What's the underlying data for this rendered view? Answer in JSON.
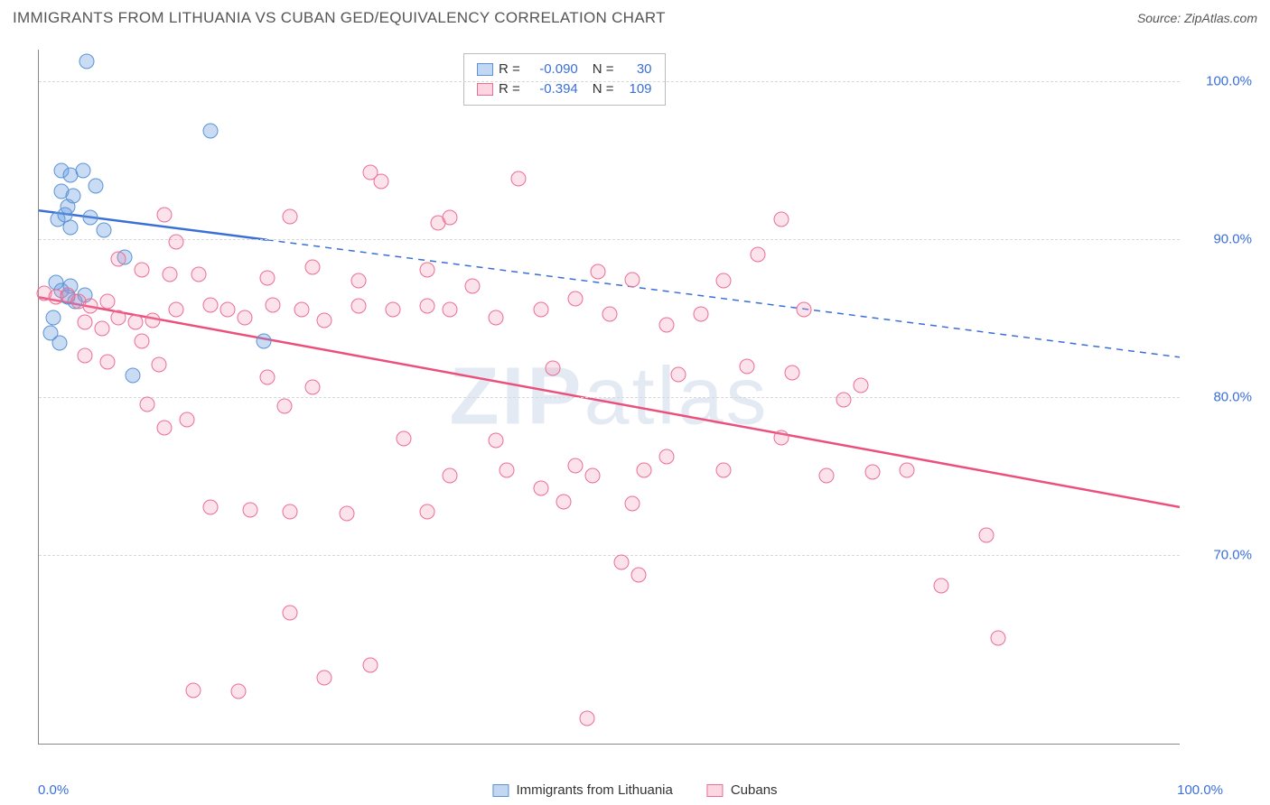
{
  "title": "IMMIGRANTS FROM LITHUANIA VS CUBAN GED/EQUIVALENCY CORRELATION CHART",
  "source_label": "Source: ",
  "source_value": "ZipAtlas.com",
  "ylabel": "GED/Equivalency",
  "watermark_light": "ZIP",
  "watermark_bold": "atlas",
  "chart": {
    "type": "scatter",
    "xlim": [
      0,
      100
    ],
    "ylim": [
      58,
      102
    ],
    "ytick_labels": [
      "70.0%",
      "80.0%",
      "90.0%",
      "100.0%"
    ],
    "ytick_values": [
      70,
      80,
      90,
      100
    ],
    "xtick_labels": [
      "0.0%",
      "100.0%"
    ],
    "xtick_values": [
      0,
      100
    ],
    "grid_color": "#d8d8d8",
    "background": "#ffffff",
    "series": [
      {
        "name": "Immigrants from Lithuania",
        "color_fill": "rgba(99,155,223,0.35)",
        "color_stroke": "#5b93d6",
        "marker": "circle",
        "marker_size": 17,
        "R": "-0.090",
        "N": "30",
        "trend": {
          "y0": 91.8,
          "y1": 82.5,
          "solid_until_x": 20,
          "stroke_width": 2.5,
          "color": "#3a6fd8"
        },
        "points": [
          [
            4.2,
            101.2
          ],
          [
            2.0,
            94.3
          ],
          [
            2.8,
            94.0
          ],
          [
            3.9,
            94.3
          ],
          [
            5.0,
            93.3
          ],
          [
            2.0,
            93.0
          ],
          [
            2.5,
            92.0
          ],
          [
            3.0,
            92.7
          ],
          [
            1.7,
            91.2
          ],
          [
            2.3,
            91.5
          ],
          [
            2.8,
            90.7
          ],
          [
            4.5,
            91.3
          ],
          [
            5.7,
            90.5
          ],
          [
            15.0,
            96.8
          ],
          [
            1.5,
            87.2
          ],
          [
            2.8,
            87.0
          ],
          [
            2.0,
            86.7
          ],
          [
            4.0,
            86.4
          ],
          [
            7.5,
            88.8
          ],
          [
            1.3,
            85.0
          ],
          [
            2.5,
            86.3
          ],
          [
            3.2,
            86.0
          ],
          [
            1.0,
            84.0
          ],
          [
            1.8,
            83.4
          ],
          [
            8.2,
            81.3
          ],
          [
            19.7,
            83.5
          ]
        ]
      },
      {
        "name": "Cubans",
        "color_fill": "rgba(245,140,170,0.25)",
        "color_stroke": "#eb6e94",
        "marker": "circle",
        "marker_size": 17,
        "R": "-0.394",
        "N": "109",
        "trend": {
          "y0": 86.3,
          "y1": 73.0,
          "solid_until_x": 100,
          "stroke_width": 2.5,
          "color": "#eb4f7c"
        },
        "points": [
          [
            29.0,
            94.2
          ],
          [
            30.0,
            93.6
          ],
          [
            42.0,
            93.8
          ],
          [
            11.0,
            91.5
          ],
          [
            12.0,
            89.8
          ],
          [
            22.0,
            91.4
          ],
          [
            35.0,
            91.0
          ],
          [
            36.0,
            91.3
          ],
          [
            65.0,
            91.2
          ],
          [
            7.0,
            88.7
          ],
          [
            9.0,
            88.0
          ],
          [
            11.5,
            87.7
          ],
          [
            14.0,
            87.7
          ],
          [
            20.0,
            87.5
          ],
          [
            24.0,
            88.2
          ],
          [
            28.0,
            87.3
          ],
          [
            34.0,
            88.0
          ],
          [
            38.0,
            87.0
          ],
          [
            49.0,
            87.9
          ],
          [
            52.0,
            87.4
          ],
          [
            60.0,
            87.3
          ],
          [
            63.0,
            89.0
          ],
          [
            0.5,
            86.5
          ],
          [
            1.5,
            86.3
          ],
          [
            2.5,
            86.4
          ],
          [
            3.5,
            86.0
          ],
          [
            4.5,
            85.7
          ],
          [
            6.0,
            86.0
          ],
          [
            4.0,
            84.7
          ],
          [
            5.5,
            84.3
          ],
          [
            7.0,
            85.0
          ],
          [
            8.5,
            84.7
          ],
          [
            10.0,
            84.8
          ],
          [
            9.0,
            83.5
          ],
          [
            12.0,
            85.5
          ],
          [
            15.0,
            85.8
          ],
          [
            16.5,
            85.5
          ],
          [
            18.0,
            85.0
          ],
          [
            20.5,
            85.8
          ],
          [
            23.0,
            85.5
          ],
          [
            25.0,
            84.8
          ],
          [
            28.0,
            85.7
          ],
          [
            31.0,
            85.5
          ],
          [
            34.0,
            85.7
          ],
          [
            36.0,
            85.5
          ],
          [
            40.0,
            85.0
          ],
          [
            44.0,
            85.5
          ],
          [
            47.0,
            86.2
          ],
          [
            50.0,
            85.2
          ],
          [
            55.0,
            84.5
          ],
          [
            58.0,
            85.2
          ],
          [
            67.0,
            85.5
          ],
          [
            4.0,
            82.6
          ],
          [
            6.0,
            82.2
          ],
          [
            10.5,
            82.0
          ],
          [
            20.0,
            81.2
          ],
          [
            24.0,
            80.6
          ],
          [
            45.0,
            81.8
          ],
          [
            56.0,
            81.4
          ],
          [
            62.0,
            81.9
          ],
          [
            66.0,
            81.5
          ],
          [
            72.0,
            80.7
          ],
          [
            9.5,
            79.5
          ],
          [
            11.0,
            78.0
          ],
          [
            13.0,
            78.5
          ],
          [
            21.5,
            79.4
          ],
          [
            70.5,
            79.8
          ],
          [
            32.0,
            77.3
          ],
          [
            40.0,
            77.2
          ],
          [
            65.0,
            77.4
          ],
          [
            55.0,
            76.2
          ],
          [
            36.0,
            75.0
          ],
          [
            41.0,
            75.3
          ],
          [
            44.0,
            74.2
          ],
          [
            47.0,
            75.6
          ],
          [
            48.5,
            75.0
          ],
          [
            53.0,
            75.3
          ],
          [
            60.0,
            75.3
          ],
          [
            69.0,
            75.0
          ],
          [
            73.0,
            75.2
          ],
          [
            76.0,
            75.3
          ],
          [
            15.0,
            73.0
          ],
          [
            18.5,
            72.8
          ],
          [
            27.0,
            72.6
          ],
          [
            22.0,
            72.7
          ],
          [
            34.0,
            72.7
          ],
          [
            46.0,
            73.3
          ],
          [
            52.0,
            73.2
          ],
          [
            83.0,
            71.2
          ],
          [
            51.0,
            69.5
          ],
          [
            52.5,
            68.7
          ],
          [
            79.0,
            68.0
          ],
          [
            22.0,
            66.3
          ],
          [
            84.0,
            64.7
          ],
          [
            13.5,
            61.4
          ],
          [
            17.5,
            61.3
          ],
          [
            25.0,
            62.2
          ],
          [
            29.0,
            63.0
          ],
          [
            48.0,
            59.6
          ]
        ]
      }
    ]
  },
  "legend_series": [
    {
      "swatch": "blue",
      "label": "Immigrants from Lithuania"
    },
    {
      "swatch": "pink",
      "label": "Cubans"
    }
  ]
}
